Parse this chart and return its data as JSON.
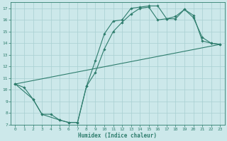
{
  "xlabel": "Humidex (Indice chaleur)",
  "xlim": [
    -0.5,
    23.5
  ],
  "ylim": [
    7,
    17.5
  ],
  "yticks": [
    7,
    8,
    9,
    10,
    11,
    12,
    13,
    14,
    15,
    16,
    17
  ],
  "xticks": [
    0,
    1,
    2,
    3,
    4,
    5,
    6,
    7,
    8,
    9,
    10,
    11,
    12,
    13,
    14,
    15,
    16,
    17,
    18,
    19,
    20,
    21,
    22,
    23
  ],
  "bg_color": "#cce8ea",
  "line_color": "#2e7d6d",
  "grid_color": "#a8cfd1",
  "line1_x": [
    0,
    1,
    2,
    3,
    4,
    5,
    6,
    7,
    8,
    9,
    10,
    11,
    12,
    13,
    14,
    15,
    16,
    17,
    18,
    19,
    20,
    21,
    22,
    23
  ],
  "line1_y": [
    10.5,
    10.2,
    9.2,
    7.9,
    7.9,
    7.4,
    7.2,
    7.2,
    10.3,
    12.5,
    14.8,
    15.9,
    16.0,
    17.0,
    17.1,
    17.2,
    17.2,
    16.1,
    16.1,
    16.9,
    16.4,
    14.2,
    14.0,
    13.9
  ],
  "line2_x": [
    0,
    2,
    3,
    5,
    6,
    7,
    8,
    9,
    10,
    11,
    12,
    13,
    14,
    15,
    16,
    17,
    18,
    19,
    20,
    21,
    22,
    23
  ],
  "line2_y": [
    10.5,
    9.2,
    7.9,
    7.4,
    7.2,
    7.2,
    10.3,
    11.5,
    13.5,
    15.0,
    15.8,
    16.5,
    17.0,
    17.1,
    16.0,
    16.1,
    16.3,
    16.9,
    16.2,
    14.5,
    14.0,
    13.9
  ],
  "line3_x": [
    0,
    23
  ],
  "line3_y": [
    10.5,
    13.9
  ]
}
